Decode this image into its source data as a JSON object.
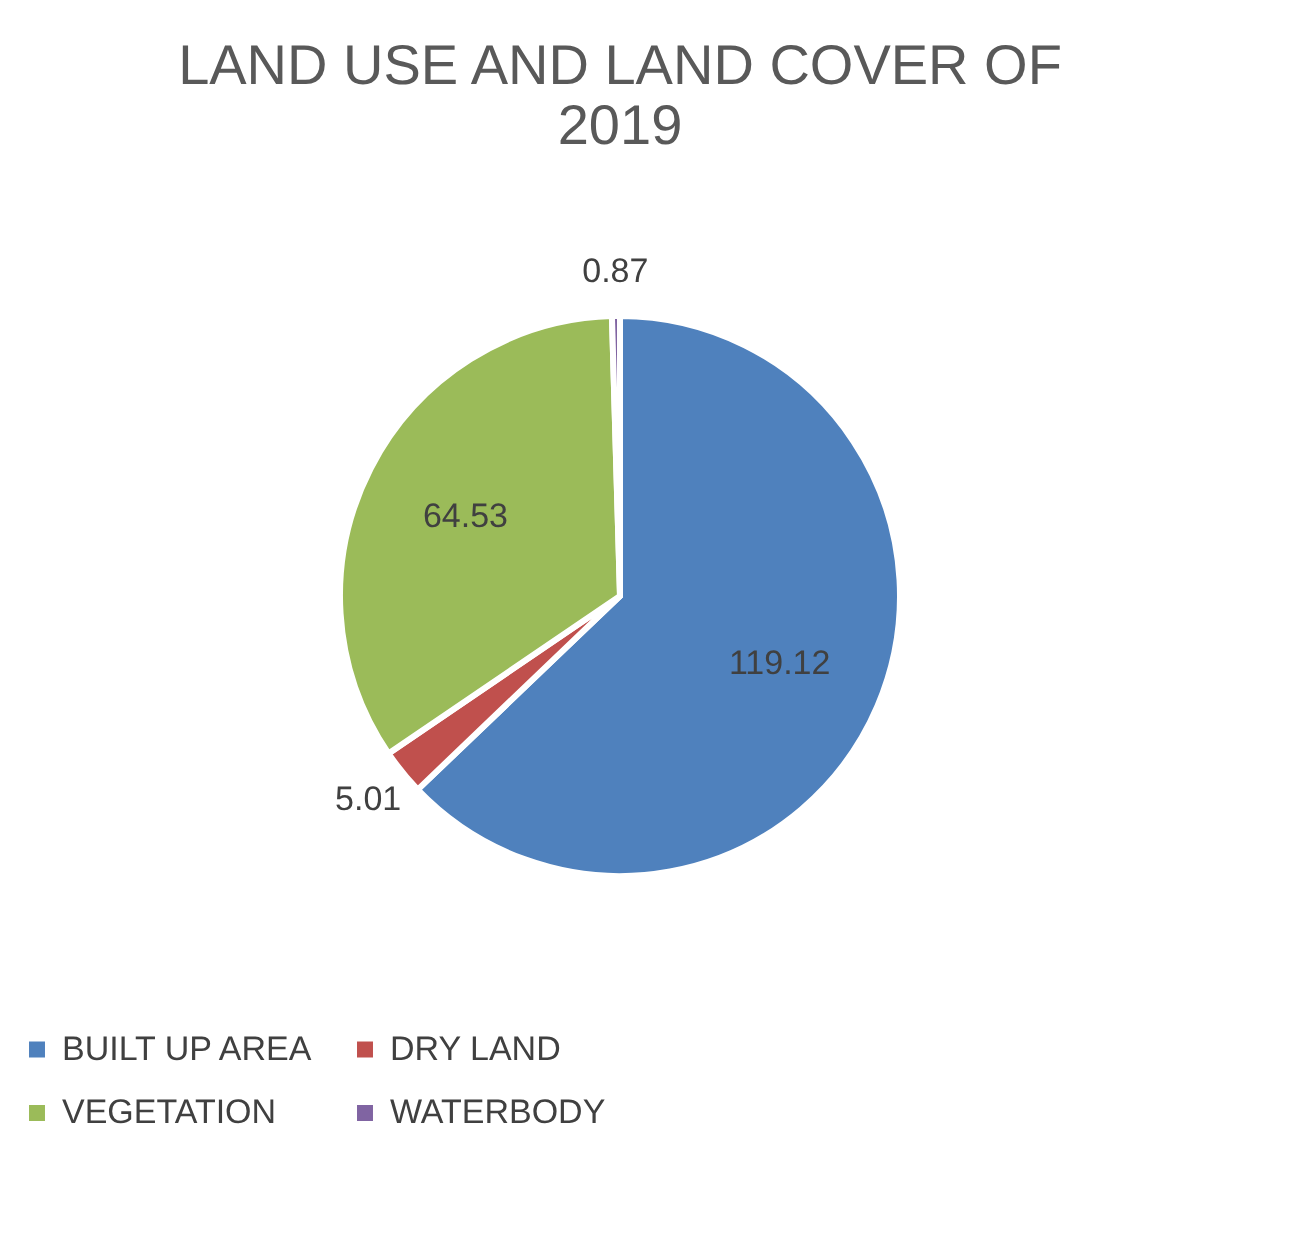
{
  "chart_data": {
    "type": "pie",
    "title": "LAND USE AND LAND COVER OF 2019",
    "categories": [
      "BUILT UP AREA",
      "DRY LAND",
      "VEGETATION",
      "WATERBODY"
    ],
    "values": [
      119.12,
      5.01,
      64.53,
      0.87
    ],
    "colors": [
      "#4f81bd",
      "#c0504d",
      "#9bbb59",
      "#8064a2"
    ],
    "data_labels": true,
    "legend": "bottom"
  }
}
